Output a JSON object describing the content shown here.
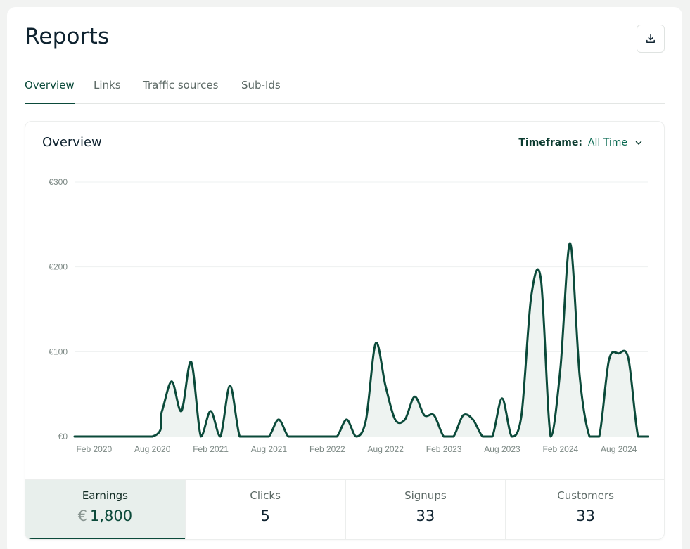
{
  "page": {
    "title": "Reports"
  },
  "tabs": [
    {
      "label": "Overview",
      "active": true
    },
    {
      "label": "Links",
      "active": false
    },
    {
      "label": "Traffic sources",
      "active": false
    },
    {
      "label": "Sub-Ids",
      "active": false
    }
  ],
  "overview": {
    "title": "Overview",
    "timeframe_label": "Timeframe:",
    "timeframe_value": "All Time"
  },
  "stats": [
    {
      "label": "Earnings",
      "currency": "€",
      "value": "1,800",
      "active": true
    },
    {
      "label": "Clicks",
      "value": "5"
    },
    {
      "label": "Signups",
      "value": "33"
    },
    {
      "label": "Customers",
      "value": "33"
    }
  ],
  "colors": {
    "accent": "#0b4a3a",
    "fill": "#eef3f1",
    "grid": "#eef1f0"
  },
  "chart_data": {
    "type": "area",
    "title": "",
    "xlabel": "",
    "ylabel": "",
    "ylim": [
      0,
      300
    ],
    "y_ticks": [
      0,
      100,
      200,
      300
    ],
    "y_tick_labels": [
      "€0",
      "€100",
      "€200",
      "€300"
    ],
    "x_tick_labels": [
      "Feb 2020",
      "Aug 2020",
      "Feb 2021",
      "Aug 2021",
      "Feb 2022",
      "Aug 2022",
      "Feb 2023",
      "Aug 2023",
      "Feb 2024",
      "Aug 2024"
    ],
    "x_tick_months": [
      1,
      7,
      13,
      19,
      25,
      31,
      37,
      43,
      49,
      55
    ],
    "month_start": "Jan 2020",
    "series": [
      {
        "name": "Earnings",
        "x_months": [
          0,
          8,
          9,
          10,
          11,
          12,
          13,
          14,
          15,
          16,
          17,
          18,
          19,
          20,
          21,
          22,
          23,
          24,
          25,
          26,
          27,
          28,
          29,
          30,
          31,
          32,
          33,
          34,
          35,
          36,
          37,
          38,
          39,
          40,
          41,
          42,
          43,
          44,
          45,
          46,
          47,
          48,
          49,
          50,
          51,
          52,
          53,
          54,
          55,
          56,
          57,
          58,
          59
        ],
        "values": [
          0,
          0,
          30,
          65,
          30,
          88,
          0,
          30,
          0,
          60,
          0,
          0,
          0,
          0,
          20,
          0,
          0,
          0,
          0,
          0,
          0,
          20,
          0,
          20,
          110,
          60,
          20,
          20,
          47,
          25,
          25,
          0,
          0,
          25,
          20,
          0,
          0,
          45,
          0,
          25,
          165,
          185,
          0,
          80,
          228,
          70,
          0,
          0,
          90,
          98,
          92,
          0,
          0
        ]
      }
    ]
  }
}
